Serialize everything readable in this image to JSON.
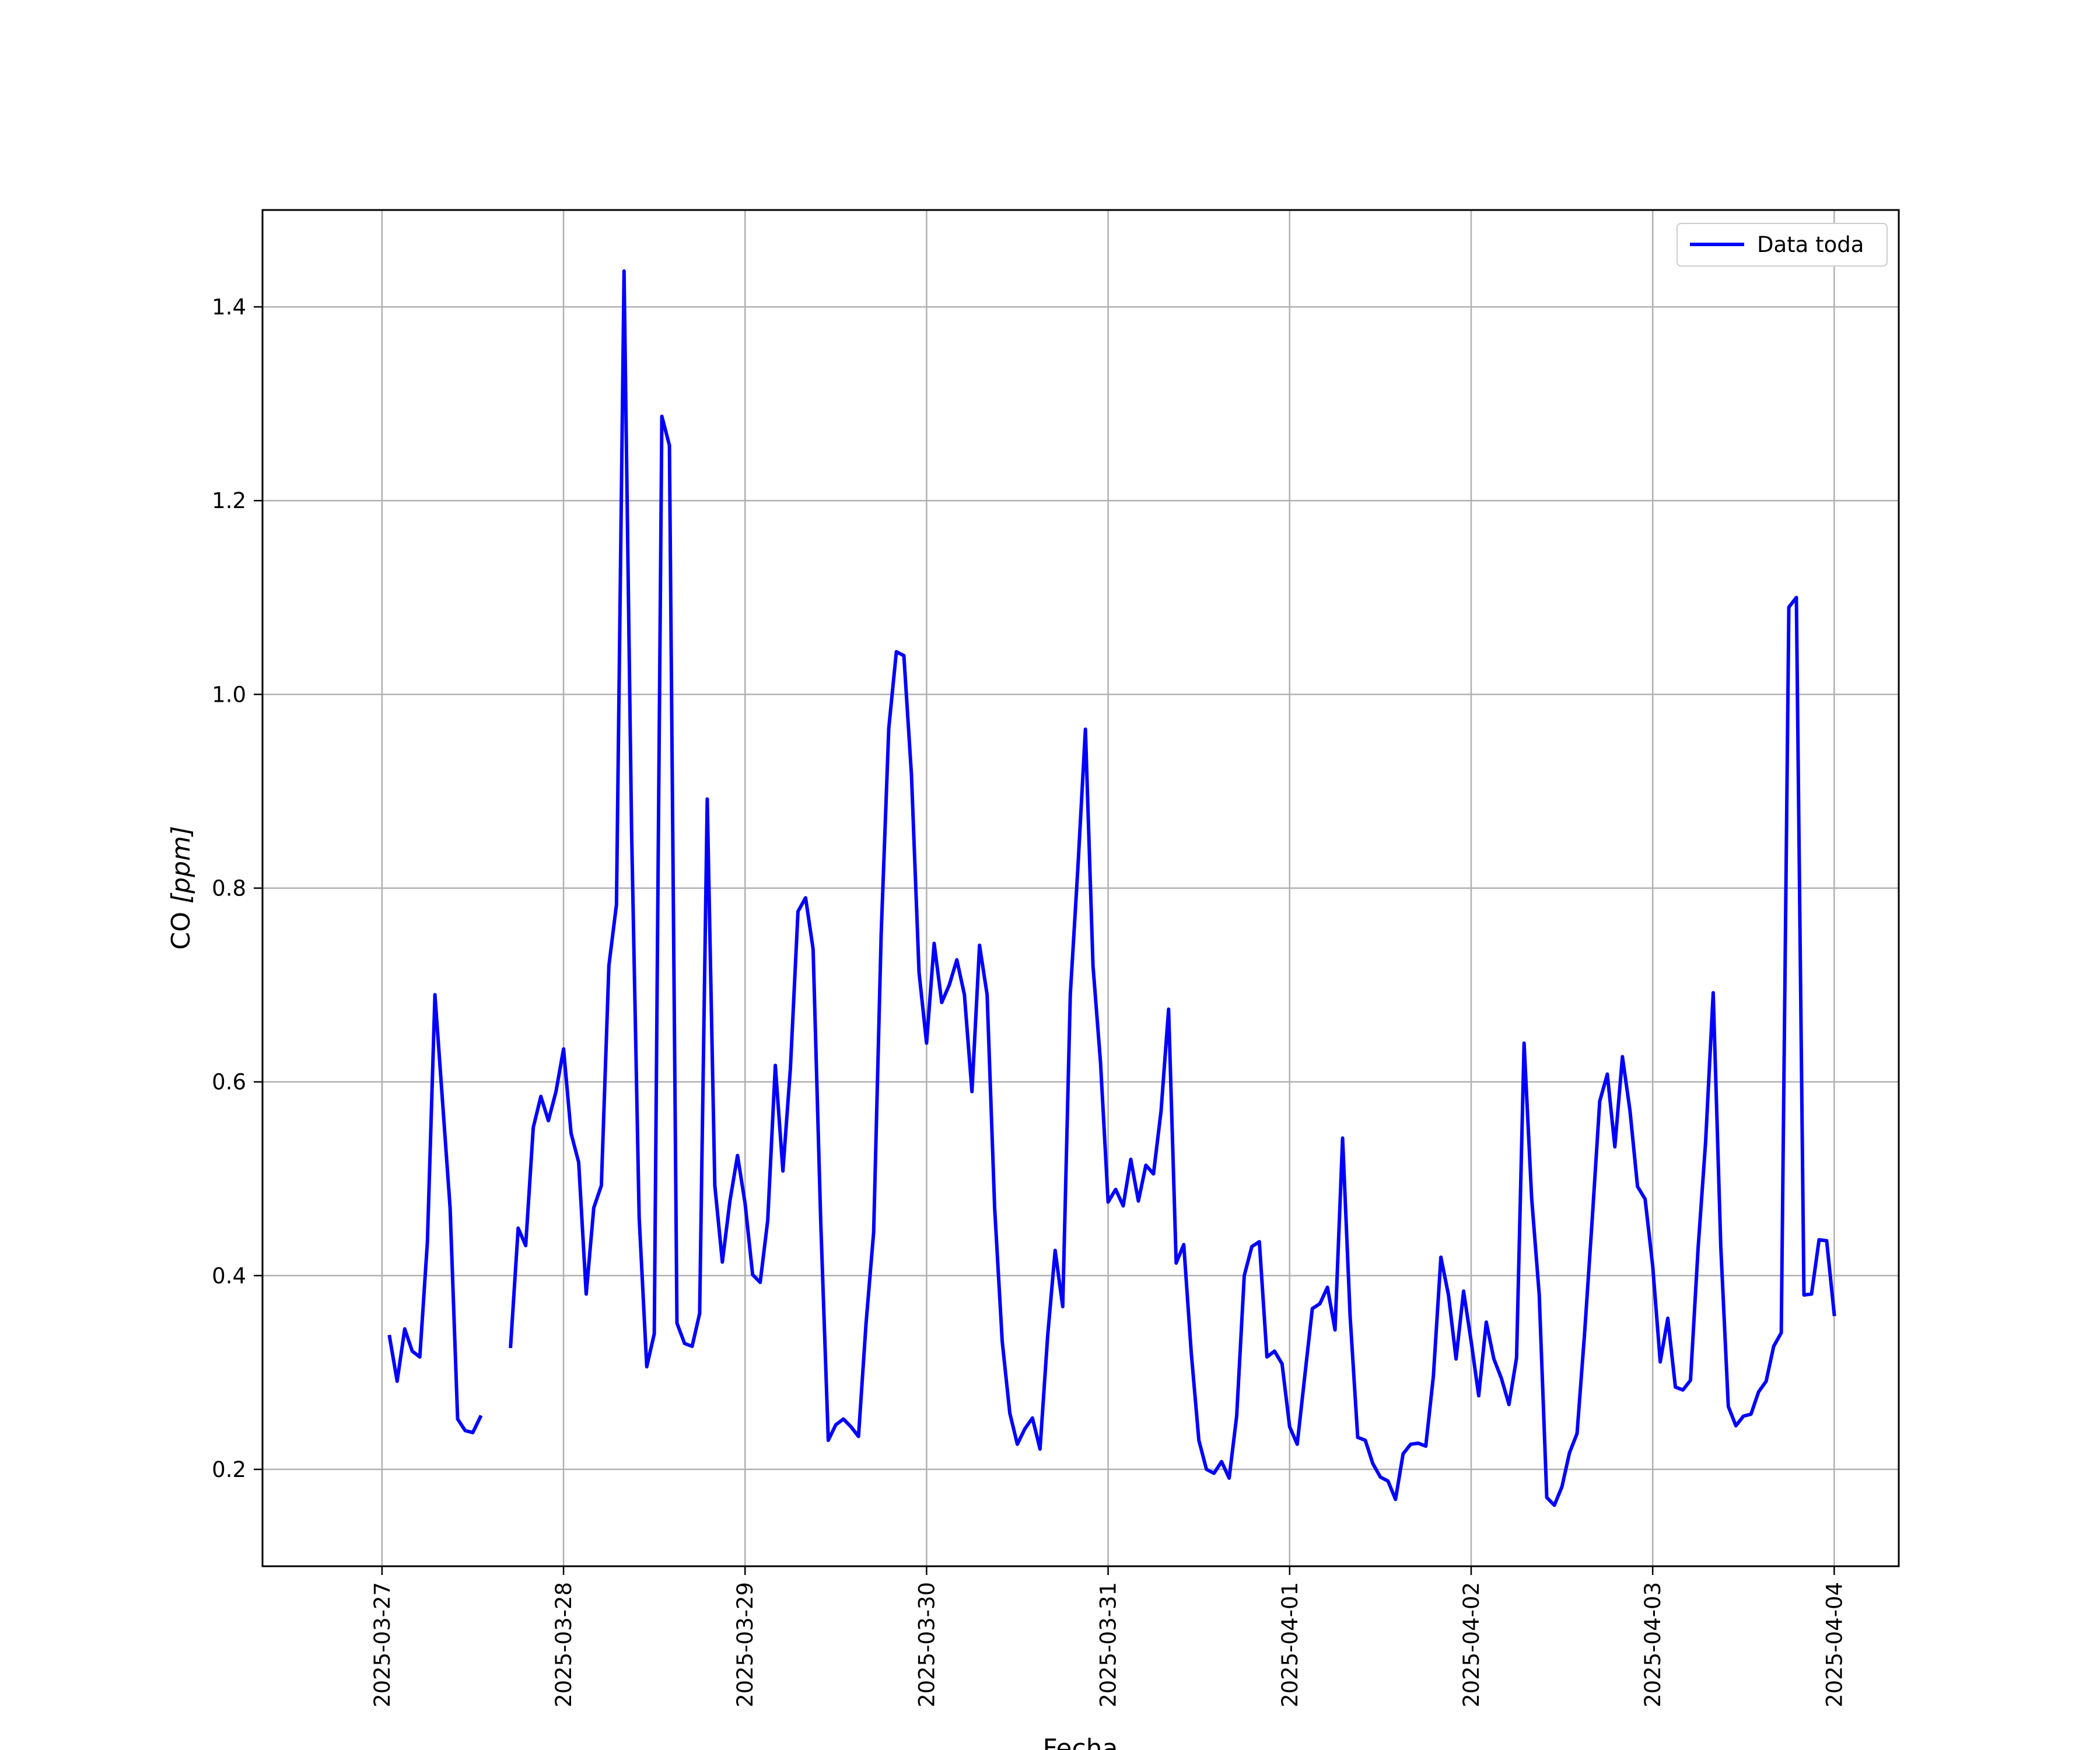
{
  "chart_data": {
    "type": "line",
    "title": "",
    "xlabel": "Fecha",
    "ylabel": "CO [ppm]",
    "ylabel_prefix": "CO ",
    "ylabel_unit": "[ppm]",
    "xlim": [
      "2025-03-26T08:12",
      "2025-04-04T08:32"
    ],
    "ylim": [
      0.1,
      1.5
    ],
    "grid": true,
    "legend_position": "top-right",
    "x_ticks": [
      "2025-03-27",
      "2025-03-28",
      "2025-03-29",
      "2025-03-30",
      "2025-03-31",
      "2025-04-01",
      "2025-04-02",
      "2025-04-03",
      "2025-04-04"
    ],
    "y_ticks": [
      "0.2",
      "0.4",
      "0.6",
      "0.8",
      "1.0",
      "1.2",
      "1.4"
    ],
    "y_tick_values": [
      0.2,
      0.4,
      0.6,
      0.8,
      1.0,
      1.2,
      1.4
    ],
    "series": [
      {
        "name": "Data toda",
        "color": "#0000ff",
        "segments": [
          {
            "x": [
              "2025-03-27T01:00",
              "2025-03-27T02:00",
              "2025-03-27T03:00",
              "2025-03-27T04:00",
              "2025-03-27T05:00",
              "2025-03-27T06:00",
              "2025-03-27T07:00",
              "2025-03-27T08:00",
              "2025-03-27T09:00",
              "2025-03-27T10:00",
              "2025-03-27T11:00",
              "2025-03-27T12:00",
              "2025-03-27T13:00"
            ],
            "y": [
              0.337,
              0.291,
              0.345,
              0.322,
              0.316,
              0.435,
              0.69,
              0.58,
              0.47,
              0.252,
              0.24,
              0.238,
              0.254
            ]
          },
          {
            "x": [
              "2025-03-27T17:00",
              "2025-03-27T18:00",
              "2025-03-27T19:00",
              "2025-03-27T20:00",
              "2025-03-27T21:00",
              "2025-03-27T22:00",
              "2025-03-27T23:00",
              "2025-03-28T00:00",
              "2025-03-28T01:00",
              "2025-03-28T02:00",
              "2025-03-28T03:00",
              "2025-03-28T04:00",
              "2025-03-28T05:00",
              "2025-03-28T06:00",
              "2025-03-28T07:00",
              "2025-03-28T08:00",
              "2025-03-28T09:00",
              "2025-03-28T10:00",
              "2025-03-28T11:00",
              "2025-03-28T12:00",
              "2025-03-28T13:00",
              "2025-03-28T14:00",
              "2025-03-28T15:00",
              "2025-03-28T16:00",
              "2025-03-28T17:00",
              "2025-03-28T18:00",
              "2025-03-28T19:00",
              "2025-03-28T20:00",
              "2025-03-28T21:00",
              "2025-03-28T22:00",
              "2025-03-28T23:00",
              "2025-03-29T00:00",
              "2025-03-29T01:00",
              "2025-03-29T02:00",
              "2025-03-29T03:00",
              "2025-03-29T04:00",
              "2025-03-29T05:00",
              "2025-03-29T06:00",
              "2025-03-29T07:00",
              "2025-03-29T08:00",
              "2025-03-29T09:00",
              "2025-03-29T10:00",
              "2025-03-29T11:00",
              "2025-03-29T12:00",
              "2025-03-29T13:00",
              "2025-03-29T14:00",
              "2025-03-29T15:00",
              "2025-03-29T16:00",
              "2025-03-29T17:00",
              "2025-03-29T18:00",
              "2025-03-29T19:00",
              "2025-03-29T20:00",
              "2025-03-29T21:00",
              "2025-03-29T22:00",
              "2025-03-29T23:00",
              "2025-03-30T00:00",
              "2025-03-30T01:00",
              "2025-03-30T02:00",
              "2025-03-30T03:00",
              "2025-03-30T04:00",
              "2025-03-30T05:00",
              "2025-03-30T06:00",
              "2025-03-30T07:00",
              "2025-03-30T08:00",
              "2025-03-30T09:00",
              "2025-03-30T10:00",
              "2025-03-30T11:00",
              "2025-03-30T12:00",
              "2025-03-30T13:00",
              "2025-03-30T14:00",
              "2025-03-30T15:00",
              "2025-03-30T16:00",
              "2025-03-30T17:00",
              "2025-03-30T18:00",
              "2025-03-30T19:00",
              "2025-03-30T20:00",
              "2025-03-30T21:00",
              "2025-03-30T22:00",
              "2025-03-30T23:00",
              "2025-03-31T00:00",
              "2025-03-31T01:00",
              "2025-03-31T02:00",
              "2025-03-31T03:00",
              "2025-03-31T04:00",
              "2025-03-31T05:00",
              "2025-03-31T06:00",
              "2025-03-31T07:00",
              "2025-03-31T08:00",
              "2025-03-31T09:00",
              "2025-03-31T10:00",
              "2025-03-31T11:00",
              "2025-03-31T12:00",
              "2025-03-31T13:00",
              "2025-03-31T14:00",
              "2025-03-31T15:00",
              "2025-03-31T16:00",
              "2025-03-31T17:00",
              "2025-03-31T18:00",
              "2025-03-31T19:00",
              "2025-03-31T20:00",
              "2025-03-31T21:00",
              "2025-03-31T22:00",
              "2025-03-31T23:00",
              "2025-04-01T00:00",
              "2025-04-01T01:00",
              "2025-04-01T02:00",
              "2025-04-01T03:00",
              "2025-04-01T04:00",
              "2025-04-01T05:00",
              "2025-04-01T06:00",
              "2025-04-01T07:00",
              "2025-04-01T08:00",
              "2025-04-01T09:00",
              "2025-04-01T10:00",
              "2025-04-01T11:00",
              "2025-04-01T12:00",
              "2025-04-01T13:00",
              "2025-04-01T14:00",
              "2025-04-01T15:00",
              "2025-04-01T16:00",
              "2025-04-01T17:00",
              "2025-04-01T18:00",
              "2025-04-01T19:00",
              "2025-04-01T20:00",
              "2025-04-01T21:00",
              "2025-04-01T22:00",
              "2025-04-01T23:00",
              "2025-04-02T00:00",
              "2025-04-02T01:00",
              "2025-04-02T02:00",
              "2025-04-02T03:00",
              "2025-04-02T04:00",
              "2025-04-02T05:00",
              "2025-04-02T06:00",
              "2025-04-02T07:00",
              "2025-04-02T08:00",
              "2025-04-02T09:00",
              "2025-04-02T10:00",
              "2025-04-02T11:00",
              "2025-04-02T12:00",
              "2025-04-02T13:00",
              "2025-04-02T14:00",
              "2025-04-02T15:00",
              "2025-04-02T16:00",
              "2025-04-02T17:00",
              "2025-04-02T18:00",
              "2025-04-02T19:00",
              "2025-04-02T20:00",
              "2025-04-02T21:00",
              "2025-04-02T22:00",
              "2025-04-02T23:00",
              "2025-04-03T00:00",
              "2025-04-03T01:00",
              "2025-04-03T02:00",
              "2025-04-03T03:00",
              "2025-04-03T04:00",
              "2025-04-03T05:00",
              "2025-04-03T06:00",
              "2025-04-03T07:00",
              "2025-04-03T08:00",
              "2025-04-03T09:00",
              "2025-04-03T10:00",
              "2025-04-03T11:00",
              "2025-04-03T12:00",
              "2025-04-03T13:00",
              "2025-04-03T14:00",
              "2025-04-03T15:00",
              "2025-04-03T16:00",
              "2025-04-03T17:00",
              "2025-04-03T18:00",
              "2025-04-03T19:00",
              "2025-04-03T20:00",
              "2025-04-03T21:00",
              "2025-04-03T22:00",
              "2025-04-03T23:00",
              "2025-04-04T00:00"
            ],
            "y": [
              0.327,
              0.449,
              0.431,
              0.553,
              0.585,
              0.56,
              0.59,
              0.634,
              0.547,
              0.517,
              0.381,
              0.47,
              0.493,
              0.72,
              0.783,
              1.437,
              0.86,
              0.46,
              0.306,
              0.34,
              1.287,
              1.257,
              0.351,
              0.33,
              0.327,
              0.361,
              0.892,
              0.493,
              0.414,
              0.477,
              0.524,
              0.475,
              0.401,
              0.393,
              0.457,
              0.617,
              0.508,
              0.614,
              0.776,
              0.79,
              0.737,
              0.457,
              0.23,
              0.246,
              0.252,
              0.244,
              0.234,
              0.351,
              0.445,
              0.753,
              0.965,
              1.044,
              1.04,
              0.917,
              0.713,
              0.64,
              0.743,
              0.682,
              0.7,
              0.726,
              0.69,
              0.59,
              0.741,
              0.69,
              0.47,
              0.332,
              0.258,
              0.226,
              0.242,
              0.253,
              0.221,
              0.337,
              0.426,
              0.368,
              0.69,
              0.82,
              0.964,
              0.72,
              0.62,
              0.476,
              0.489,
              0.472,
              0.52,
              0.477,
              0.514,
              0.505,
              0.57,
              0.675,
              0.413,
              0.432,
              0.32,
              0.23,
              0.2,
              0.196,
              0.208,
              0.191,
              0.255,
              0.4,
              0.43,
              0.435,
              0.316,
              0.322,
              0.309,
              0.244,
              0.226,
              0.296,
              0.366,
              0.371,
              0.388,
              0.344,
              0.542,
              0.358,
              0.233,
              0.23,
              0.206,
              0.192,
              0.188,
              0.169,
              0.216,
              0.226,
              0.227,
              0.224,
              0.296,
              0.419,
              0.38,
              0.314,
              0.384,
              0.332,
              0.276,
              0.352,
              0.314,
              0.294,
              0.267,
              0.315,
              0.64,
              0.48,
              0.38,
              0.171,
              0.163,
              0.182,
              0.217,
              0.237,
              0.341,
              0.457,
              0.58,
              0.608,
              0.533,
              0.626,
              0.57,
              0.492,
              0.479,
              0.41,
              0.311,
              0.356,
              0.285,
              0.282,
              0.292,
              0.428,
              0.538,
              0.692,
              0.43,
              0.265,
              0.245,
              0.255,
              0.257,
              0.28,
              0.291,
              0.327,
              0.341,
              1.09,
              1.1,
              0.38,
              0.381,
              0.437,
              0.436,
              0.36
            ]
          }
        ]
      }
    ]
  }
}
